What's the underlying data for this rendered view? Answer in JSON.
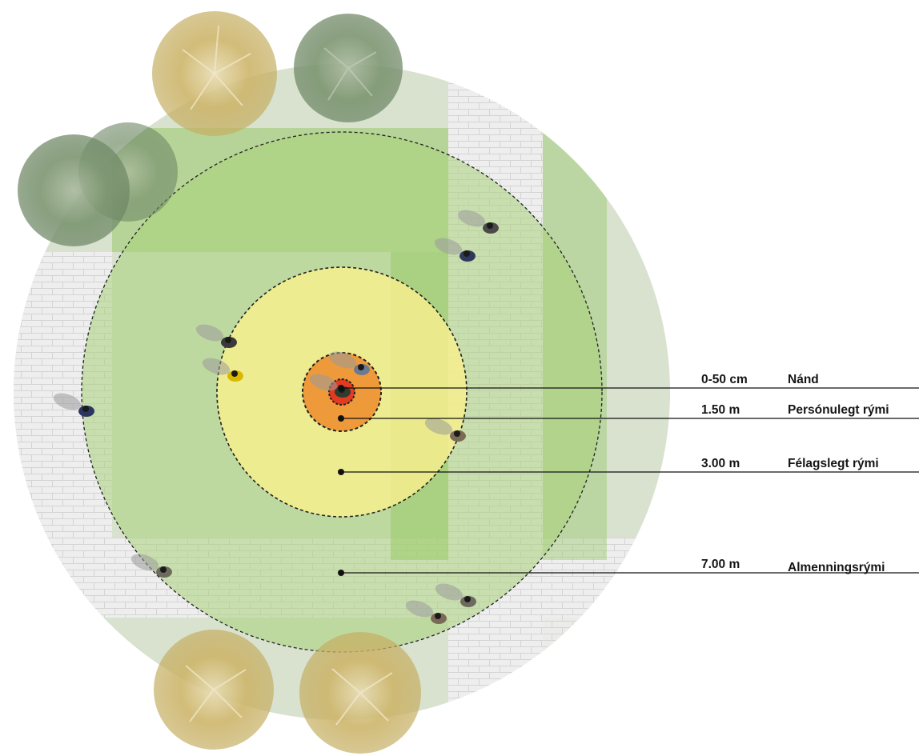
{
  "zones": [
    {
      "distance": "0-50 cm",
      "name": "Nánd",
      "color": "#e23b1f"
    },
    {
      "distance": "1.50 m",
      "name": "Persónulegt rými",
      "color": "#ee9a3a"
    },
    {
      "distance": "3.00 m",
      "name": "Félagslegt rými",
      "color": "#f3ec8c"
    },
    {
      "distance": "7.00 m",
      "name": "Almenningsrými",
      "color": "#a9d27a"
    }
  ],
  "colors": {
    "outer_plaza": "#d8e2cf",
    "paving": "#eeeeee",
    "paving_lines": "#d6d6d6",
    "grass": "#8fc35e",
    "tree_yellow": "#c9b15f",
    "tree_green": "#7f9872",
    "person_shadow": "#9a9a9a",
    "leader_line": "#111111"
  },
  "icons": [
    "tree-canopy-icon",
    "person-top-view-icon"
  ]
}
